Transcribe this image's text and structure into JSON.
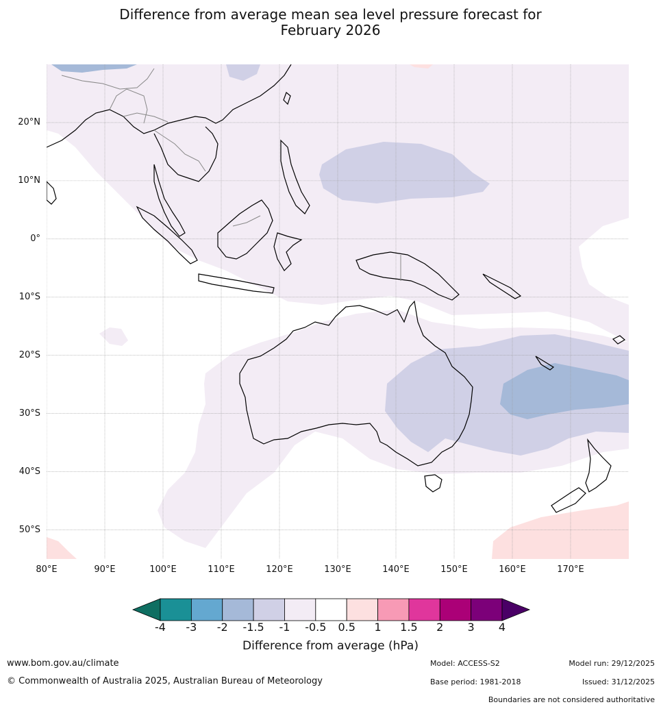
{
  "title": {
    "line1": "Difference from average mean sea level pressure forecast for",
    "line2": "February 2026"
  },
  "axes": {
    "lat_labels": [
      "20°N",
      "10°N",
      "0°",
      "10°S",
      "20°S",
      "30°S",
      "40°S",
      "50°S"
    ],
    "lat_values": [
      20,
      10,
      0,
      -10,
      -20,
      -30,
      -40,
      -50
    ],
    "lon_labels": [
      "80°E",
      "90°E",
      "100°E",
      "110°E",
      "120°E",
      "130°E",
      "140°E",
      "150°E",
      "160°E",
      "170°E"
    ],
    "lon_values": [
      80,
      90,
      100,
      110,
      120,
      130,
      140,
      150,
      160,
      170
    ],
    "lon_range": [
      80,
      180
    ],
    "lat_range": [
      -55,
      30
    ]
  },
  "colorbar": {
    "title": "Difference from average (hPa)",
    "ticks": [
      "-4",
      "-3",
      "-2",
      "-1.5",
      "-1",
      "-0.5",
      "0.5",
      "1",
      "1.5",
      "2",
      "3",
      "4"
    ],
    "colors": [
      "#0f6f62",
      "#1a9096",
      "#64a8d0",
      "#a5b9d8",
      "#d0d0e6",
      "#f3ecf5",
      "#ffffff",
      "#fde0e0",
      "#f79ab5",
      "#e0369c",
      "#ab0077",
      "#7c0079",
      "#4a0066"
    ]
  },
  "pressure_colors": {
    "light_positive": "#fde0e0",
    "light_negative": "#f3ecf5",
    "moderate_negative": "#d0d0e6",
    "stronger_negative": "#a5b9d8",
    "strong_negative": "#64a8d0"
  },
  "footer": {
    "website": "www.bom.gov.au/climate",
    "copyright": "© Commonwealth of Australia 2025, Australian Bureau of Meteorology",
    "model": "Model: ACCESS-S2",
    "base_period": "Base period: 1981-2018",
    "model_run": "Model run: 29/12/2025",
    "issued": "Issued: 31/12/2025",
    "boundaries": "Boundaries are not considered authoritative"
  }
}
